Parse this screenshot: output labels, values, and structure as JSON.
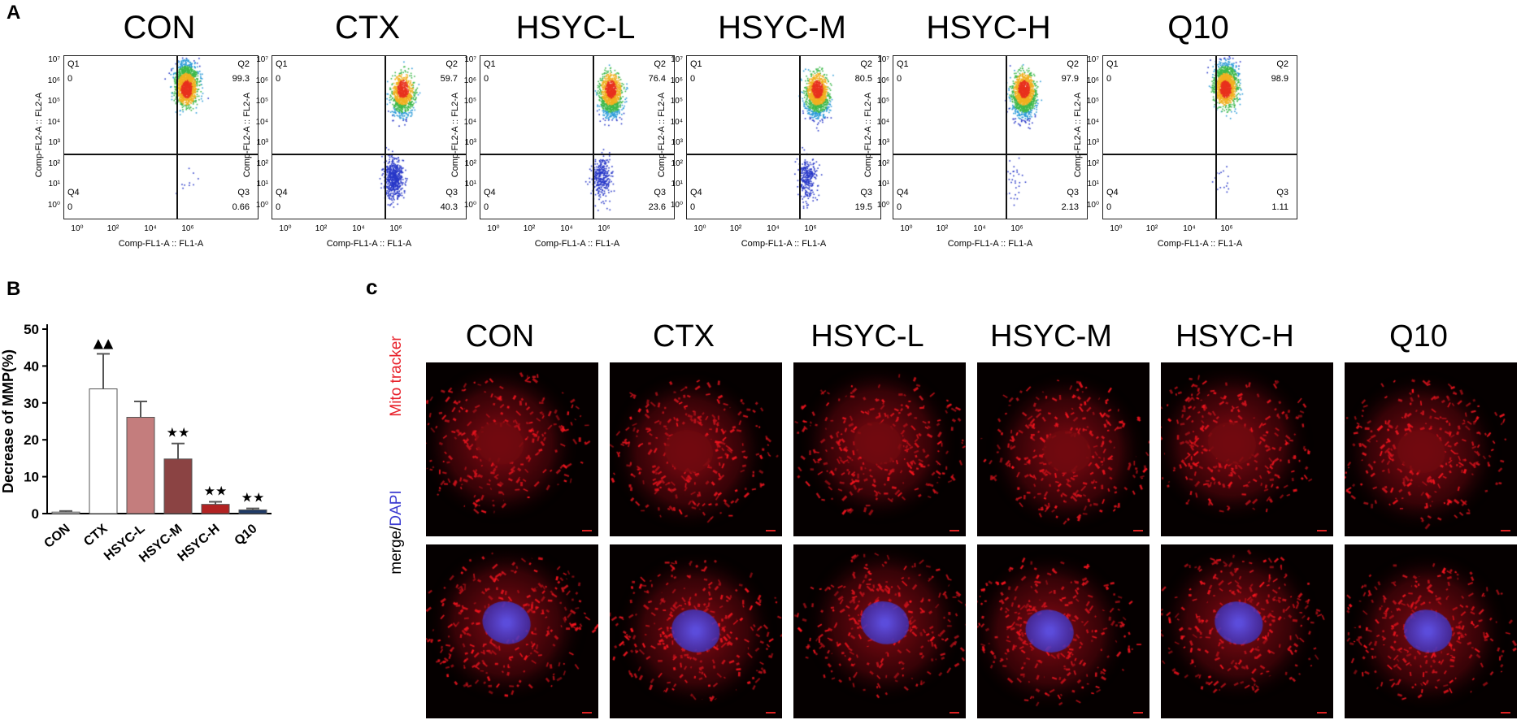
{
  "panel_a": {
    "letter": "A",
    "x_axis_label": "Comp-FL1-A :: FL1-A",
    "y_axis_label": "Comp-FL2-A :: FL2-A",
    "y_ticks": [
      "10⁷",
      "10⁶",
      "10⁵",
      "10⁴",
      "10³",
      "10²",
      "10¹",
      "10⁰"
    ],
    "x_ticks": [
      "10⁰",
      "10²",
      "10⁴",
      "10⁶"
    ],
    "plots": [
      {
        "title": "CON",
        "q1_label": "Q1",
        "q1_value": "0",
        "q2_label": "Q2",
        "q2_value": "99.3",
        "q3_label": "Q3",
        "q3_value": "0.66",
        "q4_label": "Q4",
        "q4_value": "0"
      },
      {
        "title": "CTX",
        "q1_label": "Q1",
        "q1_value": "0",
        "q2_label": "Q2",
        "q2_value": "59.7",
        "q3_label": "Q3",
        "q3_value": "40.3",
        "q4_label": "Q4",
        "q4_value": "0"
      },
      {
        "title": "HSYC-L",
        "q1_label": "Q1",
        "q1_value": "0",
        "q2_label": "Q2",
        "q2_value": "76.4",
        "q3_label": "Q3",
        "q3_value": "23.6",
        "q4_label": "Q4",
        "q4_value": "0"
      },
      {
        "title": "HSYC-M",
        "q1_label": "Q1",
        "q1_value": "0",
        "q2_label": "Q2",
        "q2_value": "80.5",
        "q3_label": "Q3",
        "q3_value": "19.5",
        "q4_label": "Q4",
        "q4_value": "0"
      },
      {
        "title": "HSYC-H",
        "q1_label": "Q1",
        "q1_value": "0",
        "q2_label": "Q2",
        "q2_value": "97.9",
        "q3_label": "Q3",
        "q3_value": "2.13",
        "q4_label": "Q4",
        "q4_value": "0"
      },
      {
        "title": "Q10",
        "q1_label": "Q1",
        "q1_value": "0",
        "q2_label": "Q2",
        "q2_value": "98.9",
        "q3_label": "Q3",
        "q3_value": "1.11",
        "q4_label": "Q4",
        "q4_value": "0"
      }
    ]
  },
  "panel_b": {
    "letter": "B"
  },
  "chart_data": {
    "type": "bar",
    "title": "",
    "xlabel": "",
    "ylabel": "Decrease of MMP(%)",
    "categories": [
      "CON",
      "CTX",
      "HSYC-L",
      "HSYC-M",
      "HSYC-H",
      "Q10"
    ],
    "values": [
      0.4,
      33.8,
      26.1,
      14.8,
      2.5,
      1.0
    ],
    "errors": [
      0.3,
      9.5,
      4.3,
      4.2,
      0.7,
      0.4
    ],
    "significance": [
      "",
      "▲▲",
      "",
      "★★",
      "★★",
      "★★"
    ],
    "bar_colors": [
      "#ffffff",
      "#ffffff",
      "#c47d7d",
      "#8b4343",
      "#b22222",
      "#1f3a66"
    ],
    "ylim": [
      0,
      50
    ],
    "yticks": [
      0,
      10,
      20,
      30,
      40,
      50
    ]
  },
  "panel_c": {
    "letter": "c",
    "columns": [
      "CON",
      "CTX",
      "HSYC-L",
      "HSYC-M",
      "HSYC-H",
      "Q10"
    ],
    "row1_label": "Mito tracker",
    "row2_label_part1": "merge/",
    "row2_label_part2": "DAPI",
    "colors": {
      "mito": "#e8202a",
      "dapi": "#3a3ad0"
    }
  }
}
